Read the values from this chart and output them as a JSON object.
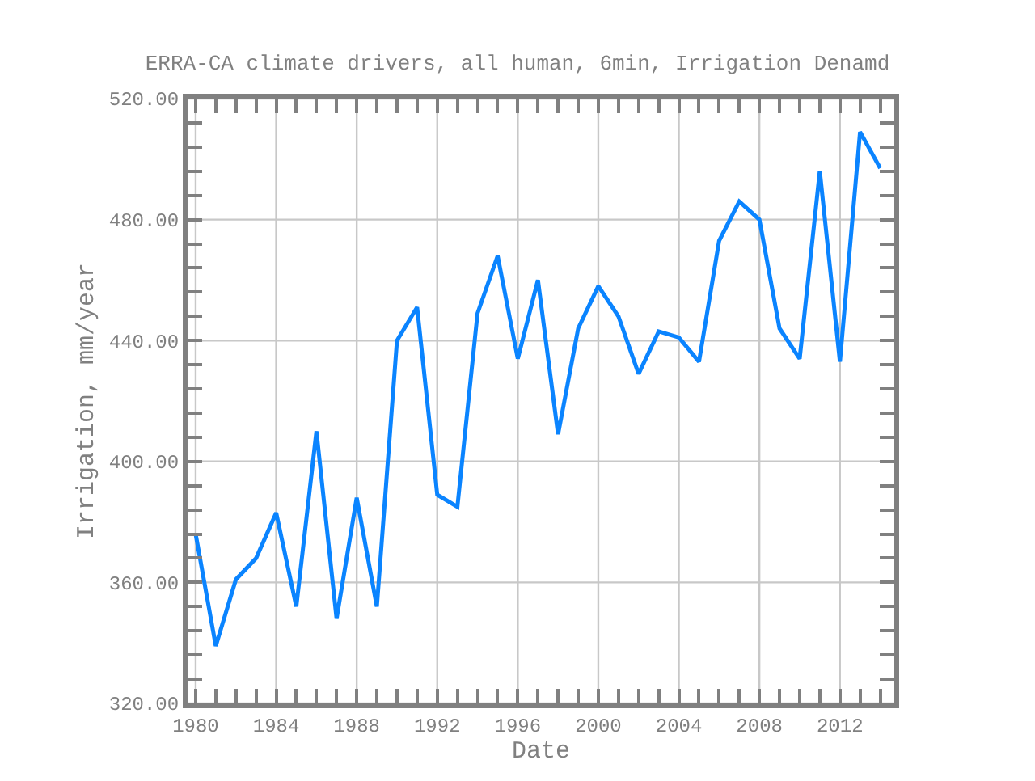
{
  "chart_data": {
    "type": "line",
    "title": "ERRA-CA climate drivers, all human, 6min, Irrigation Denamd",
    "xlabel": "Date",
    "ylabel": "Irrigation, mm/year",
    "x": [
      1980,
      1981,
      1982,
      1983,
      1984,
      1985,
      1986,
      1987,
      1988,
      1989,
      1990,
      1991,
      1992,
      1993,
      1994,
      1995,
      1996,
      1997,
      1998,
      1999,
      2000,
      2001,
      2002,
      2003,
      2004,
      2005,
      2006,
      2007,
      2008,
      2009,
      2010,
      2011,
      2012,
      2013,
      2014
    ],
    "series": [
      {
        "color": "#0a84ff",
        "values": [
          376,
          339,
          361,
          368,
          383,
          352,
          410,
          348,
          388,
          352,
          440,
          451,
          389,
          385,
          449,
          468,
          434,
          460,
          409,
          444,
          458,
          448,
          429,
          443,
          441,
          433,
          473,
          486,
          480,
          444,
          434,
          496,
          433,
          509,
          497
        ]
      }
    ],
    "xlim": [
      1979.6,
      2014.7
    ],
    "ylim": [
      320,
      520
    ],
    "xticks": [
      1980,
      {
        "value": 1981,
        "label": null
      },
      {
        "value": 1982,
        "label": null
      },
      {
        "value": 1983,
        "label": null
      },
      1984,
      {
        "value": 1985,
        "label": null
      },
      {
        "value": 1986,
        "label": null
      },
      {
        "value": 1987,
        "label": null
      },
      1988,
      {
        "value": 1989,
        "label": null
      },
      {
        "value": 1990,
        "label": null
      },
      {
        "value": 1991,
        "label": null
      },
      1992,
      {
        "value": 1993,
        "label": null
      },
      {
        "value": 1994,
        "label": null
      },
      {
        "value": 1995,
        "label": null
      },
      1996,
      {
        "value": 1997,
        "label": null
      },
      {
        "value": 1998,
        "label": null
      },
      {
        "value": 1999,
        "label": null
      },
      2000,
      {
        "value": 2001,
        "label": null
      },
      {
        "value": 2002,
        "label": null
      },
      {
        "value": 2003,
        "label": null
      },
      2004,
      {
        "value": 2005,
        "label": null
      },
      {
        "value": 2006,
        "label": null
      },
      {
        "value": 2007,
        "label": null
      },
      2008,
      {
        "value": 2009,
        "label": null
      },
      {
        "value": 2010,
        "label": null
      },
      {
        "value": 2011,
        "label": null
      },
      2012,
      {
        "value": 2013,
        "label": null
      },
      {
        "value": 2014,
        "label": null
      }
    ],
    "yticks": [
      {
        "value": 320,
        "label": "320.00"
      },
      {
        "value": 328,
        "label": null
      },
      {
        "value": 336,
        "label": null
      },
      {
        "value": 344,
        "label": null
      },
      {
        "value": 352,
        "label": null
      },
      {
        "value": 360,
        "label": "360.00"
      },
      {
        "value": 368,
        "label": null
      },
      {
        "value": 376,
        "label": null
      },
      {
        "value": 384,
        "label": null
      },
      {
        "value": 392,
        "label": null
      },
      {
        "value": 400,
        "label": "400.00"
      },
      {
        "value": 408,
        "label": null
      },
      {
        "value": 416,
        "label": null
      },
      {
        "value": 424,
        "label": null
      },
      {
        "value": 432,
        "label": null
      },
      {
        "value": 440,
        "label": "440.00"
      },
      {
        "value": 448,
        "label": null
      },
      {
        "value": 456,
        "label": null
      },
      {
        "value": 464,
        "label": null
      },
      {
        "value": 472,
        "label": null
      },
      {
        "value": 480,
        "label": "480.00"
      },
      {
        "value": 488,
        "label": null
      },
      {
        "value": 496,
        "label": null
      },
      {
        "value": 504,
        "label": null
      },
      {
        "value": 512,
        "label": null
      },
      {
        "value": 520,
        "label": "520.00"
      }
    ],
    "grid": true,
    "marker": "none",
    "line_style": "solid"
  }
}
